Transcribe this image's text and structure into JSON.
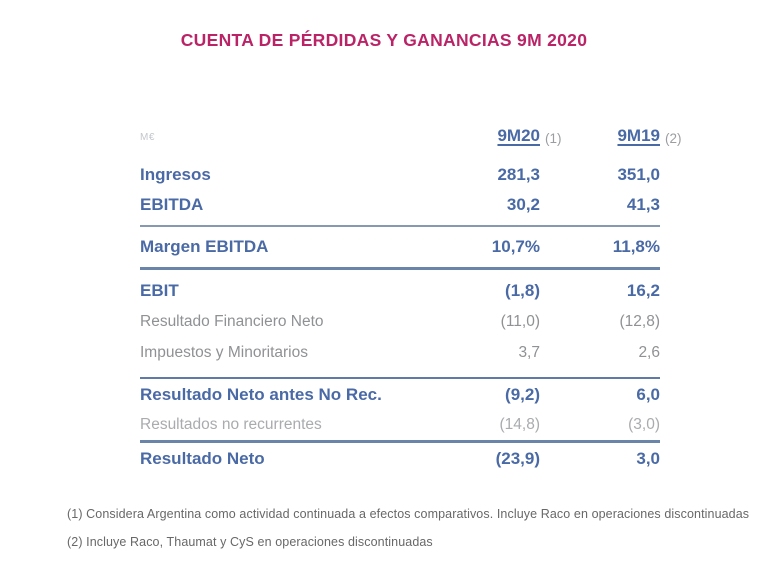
{
  "title": "CUENTA DE PÉRDIDAS Y GANANCIAS 9M 2020",
  "table": {
    "unit_label": "M€",
    "columns": [
      {
        "label": "9M20",
        "note": "(1)"
      },
      {
        "label": "9M19",
        "note": "(2)"
      }
    ],
    "rows": [
      {
        "id": "ingresos",
        "label": "Ingresos",
        "v1": "281,3",
        "v2": "351,0",
        "style": "bold"
      },
      {
        "id": "ebitda",
        "label": "EBITDA",
        "v1": "30,2",
        "v2": "41,3",
        "style": "bold",
        "divider_after": "light"
      },
      {
        "id": "margen",
        "label": "Margen EBITDA",
        "v1": "10,7%",
        "v2": "11,8%",
        "style": "bold",
        "divider_after": "dark-thick"
      },
      {
        "id": "ebit",
        "label": "EBIT",
        "v1": "(1,8)",
        "v2": "16,2",
        "style": "bold"
      },
      {
        "id": "rfn",
        "label": "Resultado Financiero Neto",
        "v1": "(11,0)",
        "v2": "(12,8)",
        "style": "gray"
      },
      {
        "id": "impuestos",
        "label": "Impuestos y Minoritarios",
        "v1": "3,7",
        "v2": "2,6",
        "style": "gray",
        "divider_after": "dark"
      },
      {
        "id": "rnantes",
        "label": "Resultado Neto antes No Rec.",
        "v1": "(9,2)",
        "v2": "6,0",
        "style": "bold"
      },
      {
        "id": "norec",
        "label": "Resultados no recurrentes",
        "v1": "(14,8)",
        "v2": "(3,0)",
        "style": "lightgray",
        "divider_after": "dark-thick"
      },
      {
        "id": "rneto",
        "label": "Resultado Neto",
        "v1": "(23,9)",
        "v2": "3,0",
        "style": "bold"
      }
    ]
  },
  "footnotes": [
    "(1) Considera Argentina como actividad continuada a efectos comparativos. Incluye Raco en operaciones discontinuadas",
    "(2) Incluye Raco, Thaumat y CyS en operaciones discontinuadas"
  ],
  "colors": {
    "title": "#ba2467",
    "primary_blue": "#4a6aa6",
    "secondary_gray": "#8f9194",
    "tertiary_gray": "#a9abae",
    "divider_blue": "#6b84a9",
    "footnote_gray": "#686868"
  }
}
